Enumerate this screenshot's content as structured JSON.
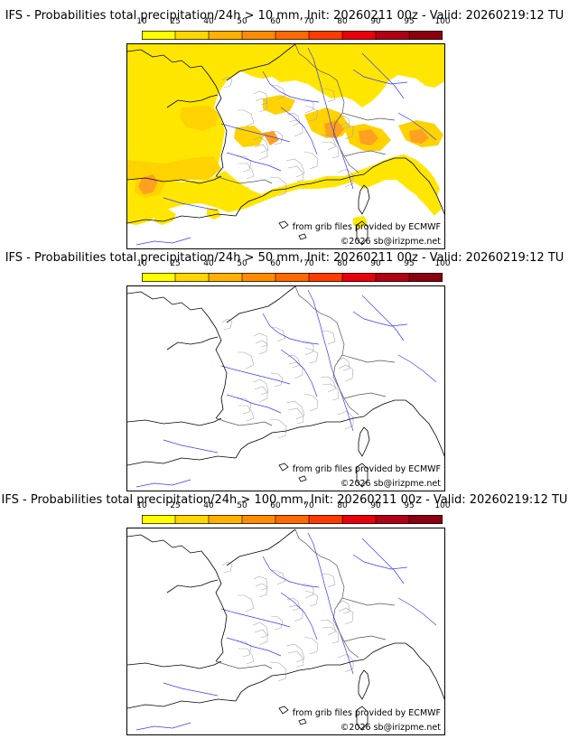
{
  "colorbar": {
    "ticks": [
      "10",
      "25",
      "40",
      "50",
      "60",
      "70",
      "80",
      "90",
      "95",
      "100"
    ],
    "colors": [
      "#ffff00",
      "#ffd700",
      "#ffb000",
      "#ff8c00",
      "#ff6a00",
      "#ff3b00",
      "#e8000b",
      "#b00016",
      "#8a0010",
      "#5c0000"
    ]
  },
  "panels": [
    {
      "title": "IFS - Probabilities total precipitation/24h > 10 mm, Init: 20260211 00z - Valid: 20260219:12 TU",
      "shading": "heavy"
    },
    {
      "title": "IFS - Probabilities total precipitation/24h > 50 mm, Init: 20260211 00z - Valid: 20260219:12 TU",
      "shading": "none"
    },
    {
      "title": "IFS - Probabilities total precipitation/24h > 100 mm, Init: 20260211 00z - Valid: 20260219:12 TU",
      "shading": "none"
    }
  ],
  "credit_source": "from grib files provided by ECMWF",
  "credit_copyright": "©2026 sb@irizpme.net",
  "map_colors": {
    "coast": "#000000",
    "rivers": "#3a3aff",
    "borders": "#a8a8a8",
    "shade_light": "#ffe600",
    "shade_mid": "#ffd200",
    "shade_dark": "#ffa020"
  }
}
